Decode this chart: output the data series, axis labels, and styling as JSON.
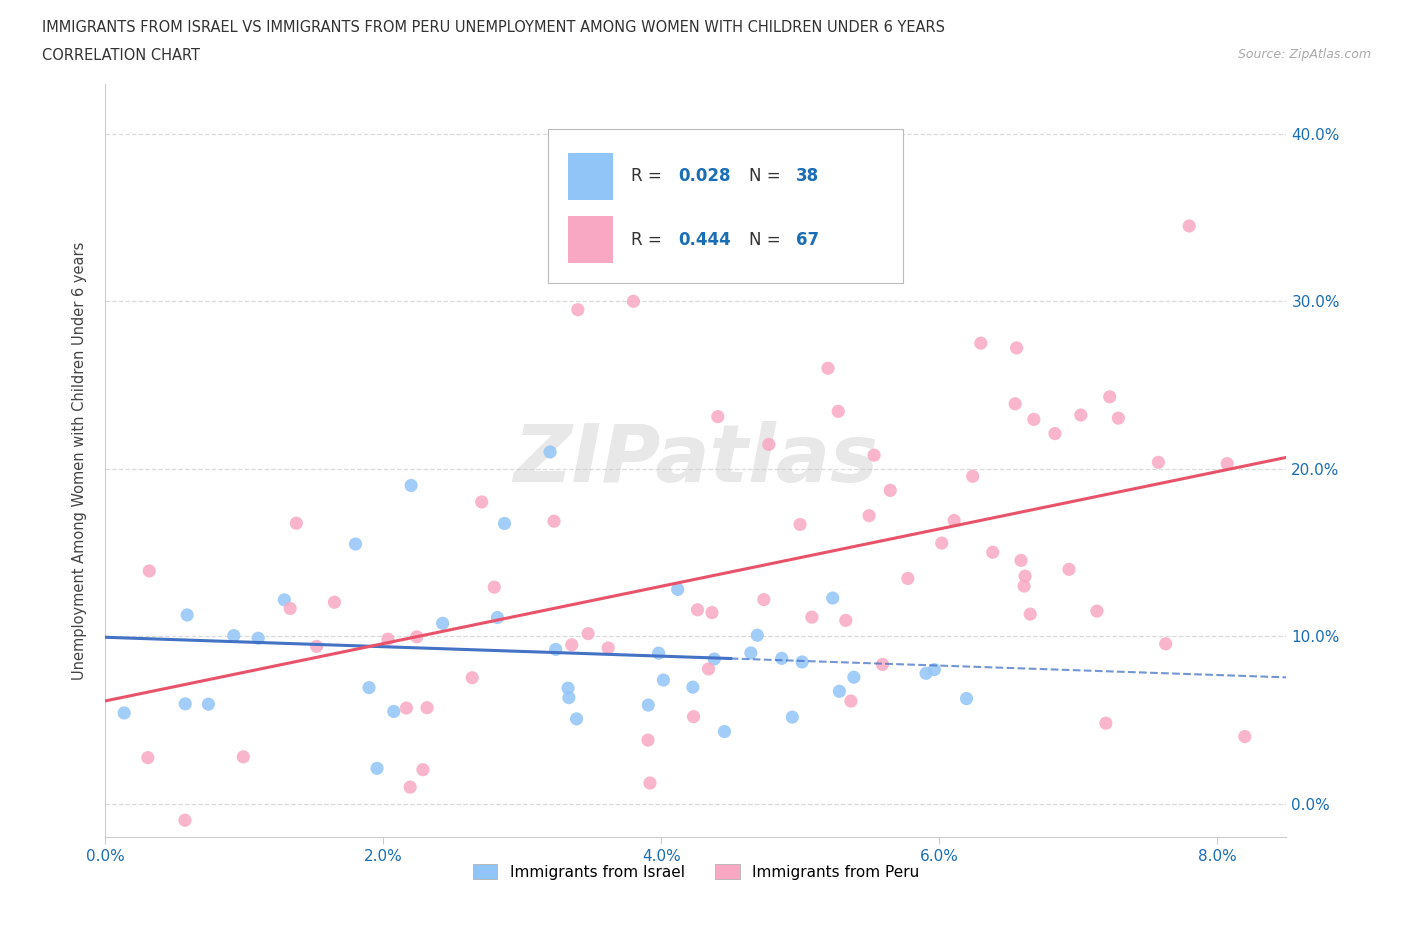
{
  "title_line1": "IMMIGRANTS FROM ISRAEL VS IMMIGRANTS FROM PERU UNEMPLOYMENT AMONG WOMEN WITH CHILDREN UNDER 6 YEARS",
  "title_line2": "CORRELATION CHART",
  "source": "Source: ZipAtlas.com",
  "ylabel": "Unemployment Among Women with Children Under 6 years",
  "israel_R": 0.028,
  "israel_N": 38,
  "peru_R": 0.444,
  "peru_N": 67,
  "israel_color": "#92C5F7",
  "peru_color": "#F9A8C4",
  "israel_line_color": "#4472C4",
  "peru_line_color": "#E8536A",
  "background_color": "#ffffff",
  "grid_color": "#d8d8d8",
  "xlim": [
    0.0,
    0.085
  ],
  "ylim": [
    -0.02,
    0.43
  ],
  "x_ticks": [
    0.0,
    0.02,
    0.04,
    0.06,
    0.08
  ],
  "y_ticks": [
    0.0,
    0.1,
    0.2,
    0.3,
    0.4
  ],
  "tick_label_color": "#1a6eb5",
  "legend_israel_label": "Immigrants from Israel",
  "legend_peru_label": "Immigrants from Peru",
  "watermark": "ZIPatlas"
}
